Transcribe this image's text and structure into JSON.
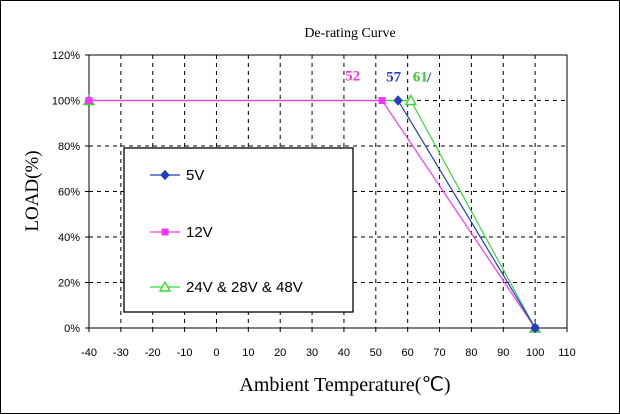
{
  "chart_data": {
    "type": "line",
    "title": "De-rating Curve",
    "xlabel": "Ambient Temperature(℃)",
    "ylabel": "LOAD(%)",
    "xlim": [
      -40,
      110
    ],
    "ylim": [
      0,
      120
    ],
    "x_ticks": [
      -40,
      -30,
      -20,
      -10,
      0,
      10,
      20,
      30,
      40,
      50,
      60,
      70,
      80,
      90,
      100,
      110
    ],
    "y_ticks": [
      0,
      20,
      40,
      60,
      80,
      100,
      120
    ],
    "y_tick_suffix": "%",
    "grid": true,
    "legend_placement": "left",
    "series": [
      {
        "name": "5V",
        "color": "#1f3fbf",
        "marker": "diamond",
        "points": [
          [
            57,
            100
          ],
          [
            100,
            0
          ]
        ]
      },
      {
        "name": "12V",
        "color": "#ff33ff",
        "marker": "square",
        "points": [
          [
            -40,
            100
          ],
          [
            52,
            100
          ],
          [
            100,
            0
          ]
        ]
      },
      {
        "name": "24V & 28V & 48V",
        "color": "#33dd33",
        "marker": "triangle",
        "points": [
          [
            -40,
            100
          ],
          [
            61,
            100
          ],
          [
            100,
            0
          ]
        ]
      }
    ],
    "annotations": [
      {
        "text": "52",
        "x": 52,
        "y": 100,
        "color": "#ff33cc"
      },
      {
        "text": "57",
        "x": 57,
        "y": 100,
        "color": "#2a3fcc"
      },
      {
        "text": "61",
        "x": 61,
        "y": 100,
        "color": "#33cc33"
      }
    ]
  }
}
